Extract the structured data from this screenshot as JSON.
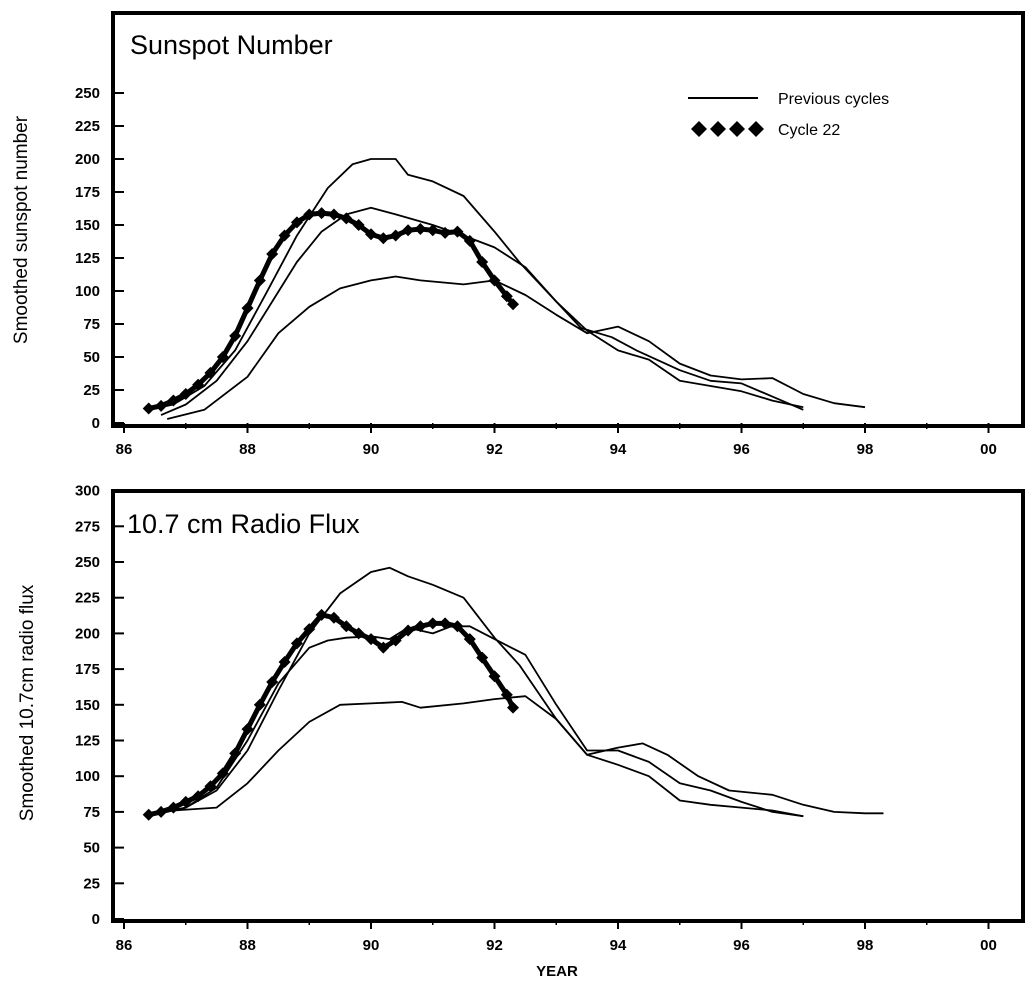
{
  "chart_data": [
    {
      "type": "line",
      "title": "Sunspot Number",
      "ylabel": "Smoothed sunspot number",
      "xlabel": "",
      "xlim": [
        86,
        100
      ],
      "ylim": [
        0,
        250
      ],
      "x_ticks": [
        "86",
        "88",
        "90",
        "92",
        "94",
        "96",
        "98",
        "00"
      ],
      "y_ticks": [
        "0",
        "25",
        "50",
        "75",
        "100",
        "125",
        "150",
        "175",
        "200",
        "225",
        "250"
      ],
      "legend": {
        "position": "top-right",
        "entries": [
          "Previous cycles",
          "Cycle 22"
        ]
      },
      "series": [
        {
          "name": "Previous cycles",
          "style": "line",
          "x": [
            86.4,
            86.8,
            87.3,
            87.8,
            88.3,
            88.8,
            89.3,
            89.7,
            90.0,
            90.4,
            90.6,
            91.0,
            91.5,
            92.0,
            92.4,
            93.0,
            93.4,
            93.9,
            94.3,
            95.0,
            95.5,
            96.0,
            96.5,
            97.0
          ],
          "values": [
            10,
            14,
            28,
            55,
            98,
            142,
            178,
            196,
            200,
            200,
            188,
            183,
            172,
            145,
            122,
            92,
            72,
            65,
            55,
            40,
            32,
            30,
            20,
            10
          ]
        },
        {
          "name": "Previous cycles",
          "style": "line",
          "x": [
            86.6,
            87.0,
            87.5,
            88.0,
            88.4,
            88.8,
            89.2,
            89.6,
            90.0,
            90.4,
            91.0,
            91.5,
            92.0,
            92.5,
            93.0,
            93.5,
            94.0,
            94.5,
            95.0,
            95.5,
            96.0,
            96.5,
            97.0
          ],
          "values": [
            6,
            14,
            32,
            62,
            92,
            122,
            145,
            158,
            163,
            158,
            150,
            142,
            133,
            118,
            92,
            70,
            55,
            48,
            32,
            28,
            24,
            17,
            12
          ]
        },
        {
          "name": "Previous cycles",
          "style": "line",
          "x": [
            86.7,
            87.3,
            88.0,
            88.5,
            89.0,
            89.5,
            90.0,
            90.4,
            90.8,
            91.5,
            92.0,
            92.5,
            93.0,
            93.5,
            94.0,
            94.5,
            95.0,
            95.5,
            96.0,
            96.5,
            97.0,
            97.5,
            98.0
          ],
          "values": [
            3,
            10,
            35,
            68,
            88,
            102,
            108,
            111,
            108,
            105,
            108,
            97,
            82,
            68,
            73,
            62,
            45,
            36,
            33,
            34,
            22,
            15,
            12
          ]
        },
        {
          "name": "Cycle 22",
          "style": "diamond-markers",
          "x": [
            86.4,
            86.6,
            86.8,
            87.0,
            87.2,
            87.4,
            87.6,
            87.8,
            88.0,
            88.2,
            88.4,
            88.6,
            88.8,
            89.0,
            89.2,
            89.4,
            89.6,
            89.8,
            90.0,
            90.2,
            90.4,
            90.6,
            90.8,
            91.0,
            91.2,
            91.4,
            91.6,
            91.8,
            92.0,
            92.2,
            92.3
          ],
          "values": [
            11,
            13,
            17,
            22,
            29,
            38,
            50,
            66,
            87,
            108,
            128,
            142,
            152,
            158,
            159,
            158,
            155,
            150,
            143,
            140,
            142,
            146,
            147,
            146,
            144,
            145,
            138,
            122,
            108,
            96,
            90
          ]
        }
      ]
    },
    {
      "type": "line",
      "title": "10.7 cm Radio Flux",
      "ylabel": "Smoothed 10.7cm radio flux",
      "xlabel": "YEAR",
      "xlim": [
        86,
        100
      ],
      "ylim": [
        0,
        300
      ],
      "x_ticks": [
        "86",
        "88",
        "90",
        "92",
        "94",
        "96",
        "98",
        "00"
      ],
      "y_ticks": [
        "0",
        "25",
        "50",
        "75",
        "100",
        "125",
        "150",
        "175",
        "200",
        "225",
        "250",
        "275",
        "300"
      ],
      "series": [
        {
          "name": "Previous cycles",
          "style": "line",
          "x": [
            86.4,
            87.0,
            87.5,
            88.0,
            88.5,
            89.0,
            89.5,
            90.0,
            90.3,
            90.6,
            91.0,
            91.5,
            92.0,
            92.4,
            93.0,
            93.5,
            94.0,
            94.5,
            95.0,
            95.5,
            96.0,
            96.5,
            97.0
          ],
          "values": [
            73,
            78,
            90,
            118,
            160,
            200,
            228,
            243,
            246,
            240,
            234,
            225,
            197,
            178,
            140,
            115,
            108,
            100,
            83,
            80,
            78,
            76,
            72
          ]
        },
        {
          "name": "Previous cycles",
          "style": "line",
          "x": [
            86.6,
            87.0,
            87.5,
            88.0,
            88.5,
            89.0,
            89.3,
            89.6,
            90.0,
            90.3,
            90.6,
            91.0,
            91.3,
            91.6,
            92.0,
            92.5,
            93.0,
            93.5,
            94.0,
            94.5,
            95.0,
            95.5,
            96.0,
            96.5,
            97.0
          ],
          "values": [
            74,
            78,
            92,
            125,
            165,
            190,
            195,
            197,
            198,
            196,
            204,
            200,
            205,
            205,
            196,
            185,
            150,
            118,
            118,
            110,
            95,
            90,
            82,
            75,
            72
          ]
        },
        {
          "name": "Previous cycles",
          "style": "line",
          "x": [
            86.8,
            87.5,
            88.0,
            88.5,
            89.0,
            89.5,
            90.0,
            90.5,
            90.8,
            91.5,
            92.0,
            92.5,
            93.0,
            93.5,
            94.0,
            94.4,
            94.8,
            95.3,
            95.8,
            96.5,
            97.0,
            97.5,
            98.0,
            98.3
          ],
          "values": [
            76,
            78,
            95,
            118,
            138,
            150,
            151,
            152,
            148,
            151,
            154,
            156,
            140,
            115,
            120,
            123,
            115,
            100,
            90,
            87,
            80,
            75,
            74,
            74
          ]
        },
        {
          "name": "Cycle 22",
          "style": "diamond-markers",
          "x": [
            86.4,
            86.6,
            86.8,
            87.0,
            87.2,
            87.4,
            87.6,
            87.8,
            88.0,
            88.2,
            88.4,
            88.6,
            88.8,
            89.0,
            89.2,
            89.4,
            89.6,
            89.8,
            90.0,
            90.2,
            90.4,
            90.6,
            90.8,
            91.0,
            91.2,
            91.4,
            91.6,
            91.8,
            92.0,
            92.2,
            92.3
          ],
          "values": [
            73,
            75,
            78,
            82,
            86,
            93,
            102,
            116,
            133,
            150,
            166,
            180,
            193,
            203,
            213,
            211,
            205,
            200,
            196,
            190,
            195,
            202,
            205,
            207,
            207,
            205,
            196,
            183,
            170,
            157,
            148
          ]
        }
      ]
    }
  ]
}
